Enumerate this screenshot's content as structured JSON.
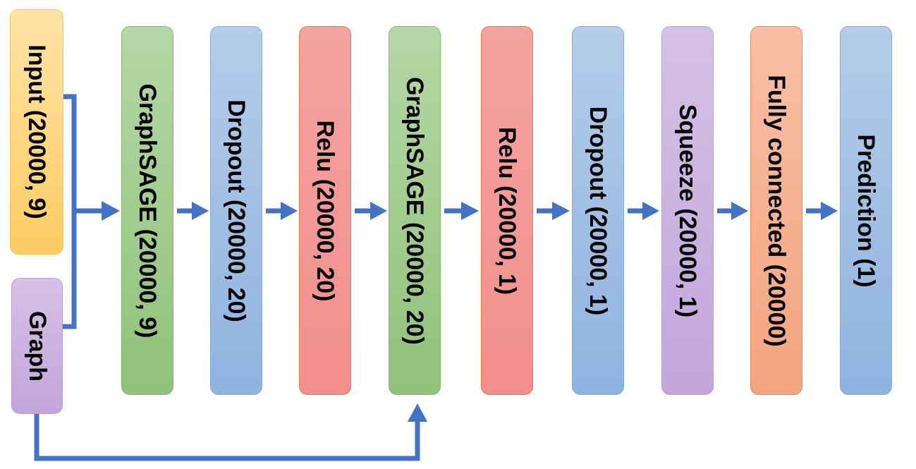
{
  "diagram": {
    "arrow_color": "#4472c4",
    "nodes": [
      {
        "id": "input",
        "label": "Input (20000, 9)",
        "color": "yellow"
      },
      {
        "id": "graph",
        "label": "Graph",
        "color": "purple"
      },
      {
        "id": "graphsage1",
        "label": "GraphSAGE (20000, 9)",
        "color": "green"
      },
      {
        "id": "dropout1",
        "label": "Dropout (20000, 20)",
        "color": "blue"
      },
      {
        "id": "relu1",
        "label": "Relu (20000, 20)",
        "color": "red"
      },
      {
        "id": "graphsage2",
        "label": "GraphSAGE (20000, 20)",
        "color": "green"
      },
      {
        "id": "relu2",
        "label": "Relu (20000, 1)",
        "color": "red"
      },
      {
        "id": "dropout2",
        "label": "Dropout (20000, 1)",
        "color": "blue"
      },
      {
        "id": "squeeze",
        "label": "Squeeze (20000, 1)",
        "color": "purple"
      },
      {
        "id": "fc",
        "label": "Fully connected (20000)",
        "color": "orange"
      },
      {
        "id": "prediction",
        "label": "Prediction (1)",
        "color": "blue"
      }
    ],
    "edges": [
      {
        "from": "input",
        "to": "graphsage1"
      },
      {
        "from": "graph",
        "to": "graphsage1"
      },
      {
        "from": "graphsage1",
        "to": "dropout1"
      },
      {
        "from": "dropout1",
        "to": "relu1"
      },
      {
        "from": "relu1",
        "to": "graphsage2"
      },
      {
        "from": "graph",
        "to": "graphsage2"
      },
      {
        "from": "graphsage2",
        "to": "relu2"
      },
      {
        "from": "relu2",
        "to": "dropout2"
      },
      {
        "from": "dropout2",
        "to": "squeeze"
      },
      {
        "from": "squeeze",
        "to": "fc"
      },
      {
        "from": "fc",
        "to": "prediction"
      }
    ]
  }
}
